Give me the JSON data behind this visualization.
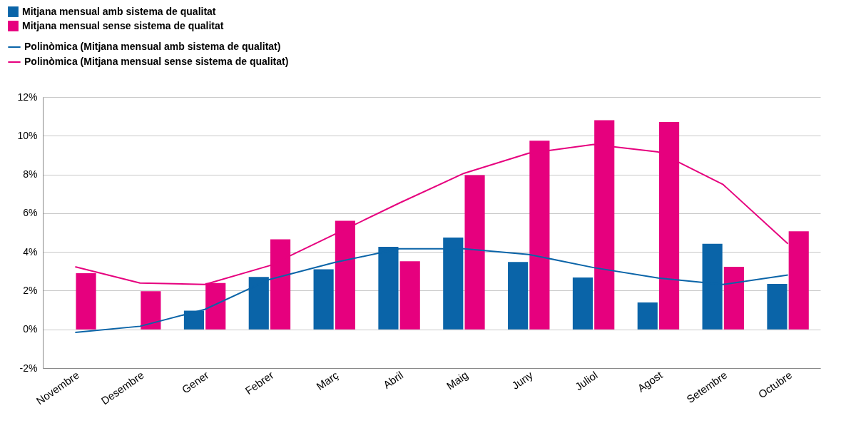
{
  "chart_data": {
    "type": "bar",
    "categories": [
      "Novembre",
      "Desembre",
      "Gener",
      "Febrer",
      "Març",
      "Abril",
      "Maig",
      "Juny",
      "Juliol",
      "Agost",
      "Setembre",
      "Octubre"
    ],
    "series": [
      {
        "name": "Mitjana mensual amb sistema de qualitat",
        "color": "#0a64a8",
        "values": [
          null,
          null,
          0.97,
          2.71,
          3.1,
          4.26,
          4.74,
          3.48,
          2.68,
          1.39,
          4.42,
          2.35
        ]
      },
      {
        "name": "Mitjana mensual sense sistema de qualitat",
        "color": "#e6007e",
        "values": [
          2.9,
          1.97,
          2.39,
          4.65,
          5.61,
          3.52,
          7.97,
          9.74,
          10.8,
          10.71,
          3.23,
          5.06
        ]
      },
      {
        "name": "Polinòmica (Mitjana mensual amb sistema de qualitat)",
        "type": "line",
        "color": "#0a64a8",
        "values": [
          -0.16,
          0.16,
          1.03,
          2.58,
          3.45,
          4.16,
          4.16,
          3.87,
          3.19,
          2.65,
          2.32,
          2.81
        ]
      },
      {
        "name": "Polinòmica (Mitjana mensual sense sistema de qualitat)",
        "type": "line",
        "color": "#e6007e",
        "values": [
          3.23,
          2.39,
          2.32,
          3.29,
          4.9,
          6.52,
          8.06,
          9.1,
          9.55,
          9.16,
          7.48,
          4.42
        ]
      }
    ],
    "ylim": [
      -2,
      12
    ],
    "yticks": [
      {
        "value": -2,
        "label": "-2%"
      },
      {
        "value": 0,
        "label": "0%"
      },
      {
        "value": 2,
        "label": "2%"
      },
      {
        "value": 4,
        "label": "4%"
      },
      {
        "value": 6,
        "label": "6%"
      },
      {
        "value": 8,
        "label": "8%"
      },
      {
        "value": 10,
        "label": "10%"
      },
      {
        "value": 12,
        "label": "12%"
      }
    ],
    "grid": "y",
    "legend": "top left"
  }
}
